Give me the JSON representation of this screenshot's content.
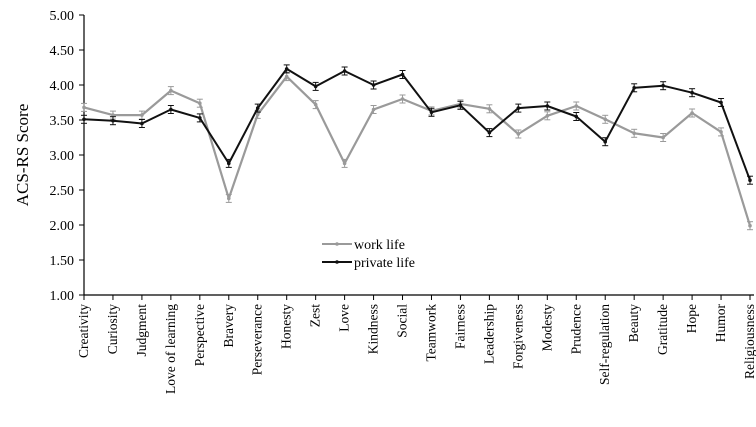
{
  "chart_data": {
    "type": "line",
    "title": "",
    "xlabel": "",
    "ylabel": "ACS-RS Score",
    "ylim": [
      1.0,
      5.0
    ],
    "yticks": [
      "1.00",
      "1.50",
      "2.00",
      "2.50",
      "3.00",
      "3.50",
      "4.00",
      "4.50",
      "5.00"
    ],
    "grid": false,
    "legend_position": "lower-center",
    "categories": [
      "Creativity",
      "Curiosity",
      "Judgment",
      "Love of learning",
      "Perspective",
      "Bravery",
      "Perseverance",
      "Honesty",
      "Zest",
      "Love",
      "Kindness",
      "Social",
      "Teamwork",
      "Fairness",
      "Leadership",
      "Forgiveness",
      "Modesty",
      "Prudence",
      "Self-regulation",
      "Beauty",
      "Gratitude",
      "Hope",
      "Humor",
      "Religiousness"
    ],
    "series": [
      {
        "name": "work life",
        "color": "#9a9a9a",
        "values": [
          3.68,
          3.57,
          3.57,
          3.92,
          3.74,
          2.38,
          3.58,
          4.12,
          3.72,
          2.88,
          3.65,
          3.8,
          3.63,
          3.73,
          3.66,
          3.3,
          3.56,
          3.7,
          3.51,
          3.31,
          3.25,
          3.6,
          3.33,
          1.99
        ]
      },
      {
        "name": "private life",
        "color": "#111111",
        "values": [
          3.51,
          3.49,
          3.45,
          3.65,
          3.53,
          2.88,
          3.67,
          4.23,
          3.98,
          4.2,
          4.0,
          4.15,
          3.61,
          3.71,
          3.32,
          3.67,
          3.7,
          3.55,
          3.19,
          3.96,
          3.99,
          3.89,
          3.75,
          2.64
        ]
      }
    ]
  }
}
